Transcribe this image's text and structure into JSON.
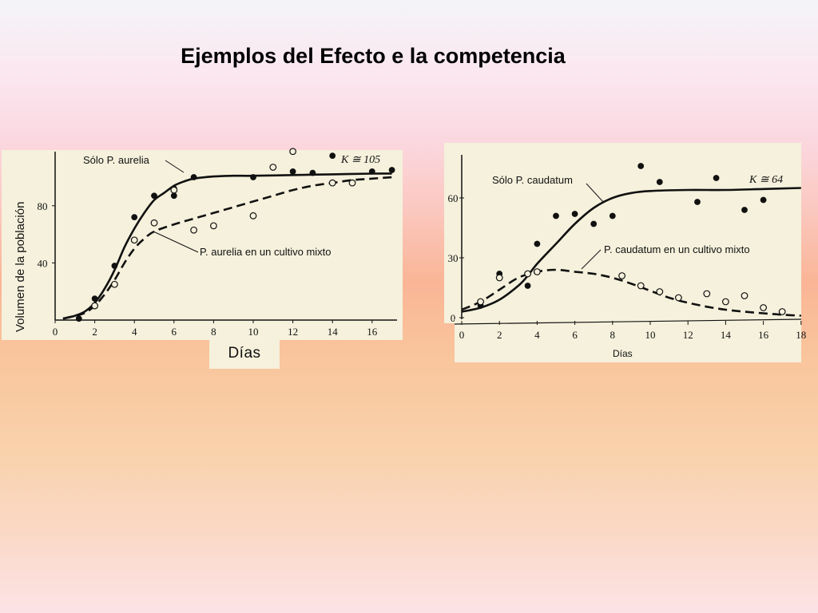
{
  "slide": {
    "title": "Ejemplos del Efecto e la competencia"
  },
  "colors": {
    "panel": "#f5f1dc",
    "ink": "#111111"
  },
  "chart_data": [
    {
      "type": "line",
      "ylabel": "Volumen de la población",
      "xlabel": "Días",
      "x_ticks": [
        "0",
        "2",
        "4",
        "6",
        "8",
        "10",
        "12",
        "14",
        "16"
      ],
      "y_ticks": [
        "40",
        "80"
      ],
      "xlim": [
        0,
        17
      ],
      "ylim": [
        0,
        118
      ],
      "annotation": "K ≅ 105",
      "series": [
        {
          "name": "Sólo P. aurelia",
          "style": "solid",
          "marker": "filled",
          "line": [
            [
              0.4,
              1
            ],
            [
              1,
              3
            ],
            [
              1.5,
              6
            ],
            [
              2,
              12
            ],
            [
              2.5,
              22
            ],
            [
              3,
              35
            ],
            [
              3.5,
              51
            ],
            [
              4,
              64
            ],
            [
              4.5,
              75
            ],
            [
              5,
              84
            ],
            [
              5.5,
              89
            ],
            [
              6,
              94
            ],
            [
              6.5,
              97
            ],
            [
              7,
              99
            ],
            [
              8,
              100.5
            ],
            [
              9,
              101
            ],
            [
              10,
              101
            ],
            [
              12,
              101.5
            ],
            [
              14,
              102
            ],
            [
              16,
              102.5
            ],
            [
              17,
              102.5
            ]
          ],
          "points": [
            [
              1.2,
              1
            ],
            [
              2,
              15
            ],
            [
              3,
              38
            ],
            [
              4,
              72
            ],
            [
              5,
              87
            ],
            [
              6,
              87
            ],
            [
              6,
              92
            ],
            [
              7,
              100
            ],
            [
              10,
              100
            ],
            [
              12,
              104
            ],
            [
              13,
              103
            ],
            [
              14,
              115
            ],
            [
              16,
              104
            ],
            [
              17,
              105
            ]
          ]
        },
        {
          "name": "P. aurelia en un cultivo mixto",
          "style": "dashed",
          "marker": "open",
          "line": [
            [
              0.4,
              1
            ],
            [
              1,
              3
            ],
            [
              1.5,
              5
            ],
            [
              2,
              10
            ],
            [
              2.5,
              18
            ],
            [
              3,
              28
            ],
            [
              3.5,
              40
            ],
            [
              4,
              50
            ],
            [
              4.5,
              57
            ],
            [
              5,
              62
            ],
            [
              6,
              67
            ],
            [
              7,
              71
            ],
            [
              8,
              75
            ],
            [
              9,
              79
            ],
            [
              10,
              83
            ],
            [
              11,
              87
            ],
            [
              12,
              91
            ],
            [
              13,
              94
            ],
            [
              14,
              96
            ],
            [
              15,
              98
            ],
            [
              16,
              99
            ],
            [
              17,
              100
            ]
          ],
          "points": [
            [
              2,
              10
            ],
            [
              3,
              25
            ],
            [
              4,
              56
            ],
            [
              5,
              68
            ],
            [
              6,
              91
            ],
            [
              7,
              63
            ],
            [
              8,
              66
            ],
            [
              10,
              73
            ],
            [
              11,
              107
            ],
            [
              12,
              118
            ],
            [
              14,
              96
            ],
            [
              15,
              96
            ]
          ]
        }
      ]
    },
    {
      "type": "line",
      "xlabel": "Días",
      "x_ticks": [
        "0",
        "2",
        "4",
        "6",
        "8",
        "10",
        "12",
        "14",
        "16",
        "18"
      ],
      "y_ticks": [
        "0",
        "30",
        "60"
      ],
      "xlim": [
        0,
        18
      ],
      "ylim": [
        0,
        80
      ],
      "annotation": "K ≅ 64",
      "series": [
        {
          "name": "Sólo P. caudatum",
          "style": "solid",
          "marker": "filled",
          "line": [
            [
              0,
              3
            ],
            [
              1,
              5
            ],
            [
              2,
              9
            ],
            [
              3,
              16
            ],
            [
              3.5,
              21
            ],
            [
              4,
              27
            ],
            [
              5,
              37
            ],
            [
              6,
              47
            ],
            [
              7,
              55
            ],
            [
              8,
              60
            ],
            [
              9,
              62.5
            ],
            [
              10,
              63.5
            ],
            [
              12,
              64
            ],
            [
              14,
              64
            ],
            [
              16,
              64.5
            ],
            [
              18,
              65
            ]
          ],
          "points": [
            [
              1,
              6
            ],
            [
              2,
              22
            ],
            [
              3.5,
              16
            ],
            [
              4,
              37
            ],
            [
              5,
              51
            ],
            [
              6,
              52
            ],
            [
              7,
              47
            ],
            [
              8,
              51
            ],
            [
              9.5,
              76
            ],
            [
              10.5,
              68
            ],
            [
              12.5,
              58
            ],
            [
              13.5,
              70
            ],
            [
              15,
              54
            ],
            [
              16,
              59
            ]
          ]
        },
        {
          "name": "P. caudatum en un cultivo mixto",
          "style": "dashed",
          "marker": "open",
          "line": [
            [
              0,
              4
            ],
            [
              1,
              8
            ],
            [
              2,
              14
            ],
            [
              3,
              20
            ],
            [
              4,
              23
            ],
            [
              5,
              24
            ],
            [
              6,
              23
            ],
            [
              7,
              22
            ],
            [
              8,
              20
            ],
            [
              9,
              17
            ],
            [
              10,
              13.5
            ],
            [
              11,
              10
            ],
            [
              12,
              7.5
            ],
            [
              13,
              5.5
            ],
            [
              14,
              4
            ],
            [
              15,
              3
            ],
            [
              16,
              2.2
            ],
            [
              17,
              1.5
            ],
            [
              18,
              1
            ]
          ],
          "points": [
            [
              1,
              8
            ],
            [
              2,
              20
            ],
            [
              3.5,
              22
            ],
            [
              4,
              23
            ],
            [
              8.5,
              21
            ],
            [
              9.5,
              16
            ],
            [
              10.5,
              13
            ],
            [
              11.5,
              10
            ],
            [
              13,
              12
            ],
            [
              14,
              8
            ],
            [
              15,
              11
            ],
            [
              16,
              5
            ],
            [
              17,
              3
            ]
          ]
        }
      ]
    }
  ]
}
